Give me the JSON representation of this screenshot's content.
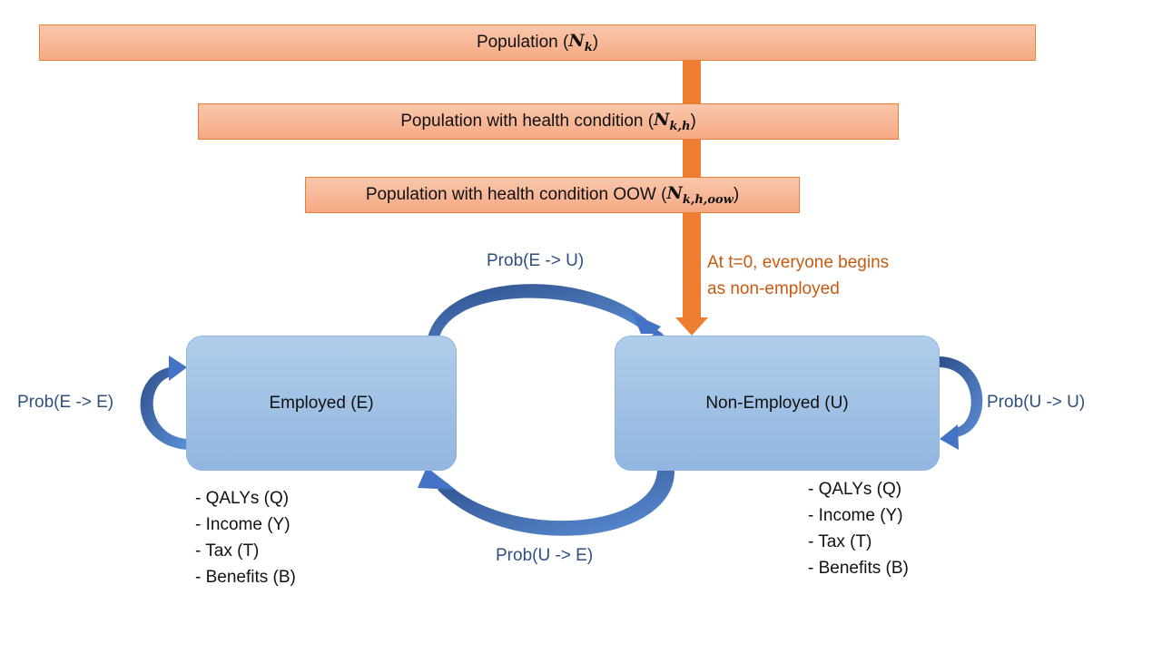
{
  "bars": {
    "population": {
      "text": "Population",
      "sym": "N",
      "sub": "k"
    },
    "health": {
      "text": "Population with health condition",
      "sym": "N",
      "sub": "k,h"
    },
    "oow": {
      "text": "Population with health condition OOW",
      "sym": "N",
      "sub": "k,h,oow"
    }
  },
  "note": {
    "line1": "At t=0, everyone begins",
    "line2": "as non-employed"
  },
  "states": {
    "employed": "Employed (E)",
    "nonemployed": "Non-Employed (U)"
  },
  "transitions": {
    "e_to_u": "Prob(E -> U)",
    "u_to_e": "Prob(U -> E)",
    "e_to_e": "Prob(E -> E)",
    "u_to_u": "Prob(U -> U)"
  },
  "outcomes": {
    "employed": [
      "QALYs (Q)",
      "Income (Y)",
      "Tax (T)",
      "Benefits (B)"
    ],
    "nonemployed": [
      "QALYs (Q)",
      "Income (Y)",
      "Tax (T)",
      "Benefits (B)"
    ]
  },
  "colors": {
    "orange": "#ed7d31",
    "blue_arrow": "#4472c4",
    "label_blue": "#2f4f7f",
    "note_orange": "#c55a11"
  }
}
